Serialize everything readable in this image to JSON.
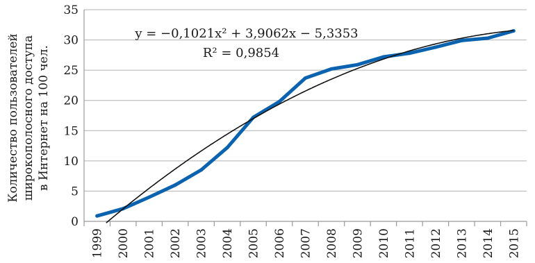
{
  "chart_data": {
    "type": "line",
    "ylabel_lines": [
      "Количество пользователей",
      "широкополосного доступа",
      "в Интернет на 100 чел."
    ],
    "x": [
      "1999",
      "2000",
      "2001",
      "2002",
      "2003",
      "2004",
      "2005",
      "2006",
      "2007",
      "2008",
      "2009",
      "2010",
      "2011",
      "2012",
      "2013",
      "2014",
      "2015"
    ],
    "series": [
      {
        "values": [
          0.9,
          2.1,
          4.0,
          6.0,
          8.5,
          12.2,
          17.2,
          19.8,
          23.7,
          25.2,
          25.9,
          27.2,
          27.8,
          28.8,
          29.9,
          30.3,
          31.5
        ],
        "color": "#0b63b0"
      }
    ],
    "trendline": {
      "equation": "y = −0,1021x² + 3,9062x − 5,3353",
      "r2": "R² = 0,9854",
      "coefficients": {
        "a": -0.1021,
        "b": 3.9062,
        "c": -5.3353
      },
      "color": "#111111"
    },
    "yticks": [
      "0",
      "5",
      "10",
      "15",
      "20",
      "25",
      "30",
      "35"
    ],
    "ylim": [
      0,
      35
    ],
    "grid": true
  }
}
